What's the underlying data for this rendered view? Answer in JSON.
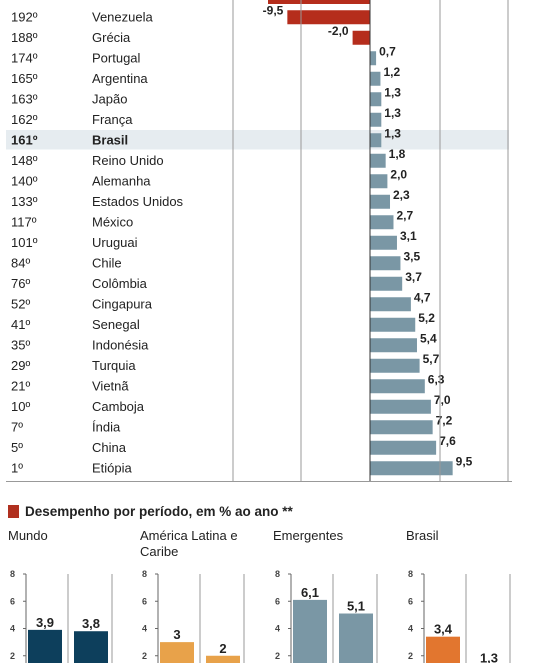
{
  "colors": {
    "negative": "#b52d1c",
    "positive": "#7a97a5",
    "highlight_row": "#e6ecf0"
  },
  "chart_data": [
    {
      "type": "bar",
      "orientation": "horizontal",
      "highlight": "Brasil",
      "rows": [
        {
          "rank": "192º",
          "country": "Venezuela",
          "value": -9.5,
          "label": "-9,5"
        },
        {
          "rank": "188º",
          "country": "Grécia",
          "value": -2.0,
          "label": "-2,0"
        },
        {
          "rank": "174º",
          "country": "Portugal",
          "value": 0.7,
          "label": "0,7"
        },
        {
          "rank": "165º",
          "country": "Argentina",
          "value": 1.2,
          "label": "1,2"
        },
        {
          "rank": "163º",
          "country": "Japão",
          "value": 1.3,
          "label": "1,3"
        },
        {
          "rank": "162º",
          "country": "França",
          "value": 1.3,
          "label": "1,3"
        },
        {
          "rank": "161º",
          "country": "Brasil",
          "value": 1.3,
          "label": "1,3"
        },
        {
          "rank": "148º",
          "country": "Reino Unido",
          "value": 1.8,
          "label": "1,8"
        },
        {
          "rank": "140º",
          "country": "Alemanha",
          "value": 2.0,
          "label": "2,0"
        },
        {
          "rank": "133º",
          "country": "Estados Unidos",
          "value": 2.3,
          "label": "2,3"
        },
        {
          "rank": "117º",
          "country": "México",
          "value": 2.7,
          "label": "2,7"
        },
        {
          "rank": "101º",
          "country": "Uruguai",
          "value": 3.1,
          "label": "3,1"
        },
        {
          "rank": "84º",
          "country": "Chile",
          "value": 3.5,
          "label": "3,5"
        },
        {
          "rank": "76º",
          "country": "Colômbia",
          "value": 3.7,
          "label": "3,7"
        },
        {
          "rank": "52º",
          "country": "Cingapura",
          "value": 4.7,
          "label": "4,7"
        },
        {
          "rank": "41º",
          "country": "Senegal",
          "value": 5.2,
          "label": "5,2"
        },
        {
          "rank": "35º",
          "country": "Indonésia",
          "value": 5.4,
          "label": "5,4"
        },
        {
          "rank": "29º",
          "country": "Turquia",
          "value": 5.7,
          "label": "5,7"
        },
        {
          "rank": "21º",
          "country": "Vietnã",
          "value": 6.3,
          "label": "6,3"
        },
        {
          "rank": "10º",
          "country": "Camboja",
          "value": 7.0,
          "label": "7,0"
        },
        {
          "rank": "7º",
          "country": "Índia",
          "value": 7.2,
          "label": "7,2"
        },
        {
          "rank": "5º",
          "country": "China",
          "value": 7.6,
          "label": "7,6"
        },
        {
          "rank": "1º",
          "country": "Etiópia",
          "value": 9.5,
          "label": "9,5"
        }
      ]
    },
    {
      "type": "bar",
      "title": "Desempenho por período, em % ao ano **",
      "ylim": [
        0,
        8
      ],
      "yticks": [
        "8",
        "6",
        "4",
        "2"
      ],
      "panels": [
        {
          "name": "Mundo",
          "color": "#0d3f5c",
          "values": [
            3.9,
            3.8
          ],
          "labels": [
            "3,9",
            "3,8"
          ]
        },
        {
          "name": "América Latina e Caribe",
          "color": "#e8a24a",
          "values": [
            3,
            2
          ],
          "labels": [
            "3",
            "2"
          ]
        },
        {
          "name": "Emergentes",
          "color": "#7a97a5",
          "values": [
            6.1,
            5.1
          ],
          "labels": [
            "6,1",
            "5,1"
          ]
        },
        {
          "name": "Brasil",
          "color": "#e2762f",
          "values": [
            3.4,
            1.3
          ],
          "labels": [
            "3,4",
            "1,3"
          ]
        }
      ]
    }
  ]
}
